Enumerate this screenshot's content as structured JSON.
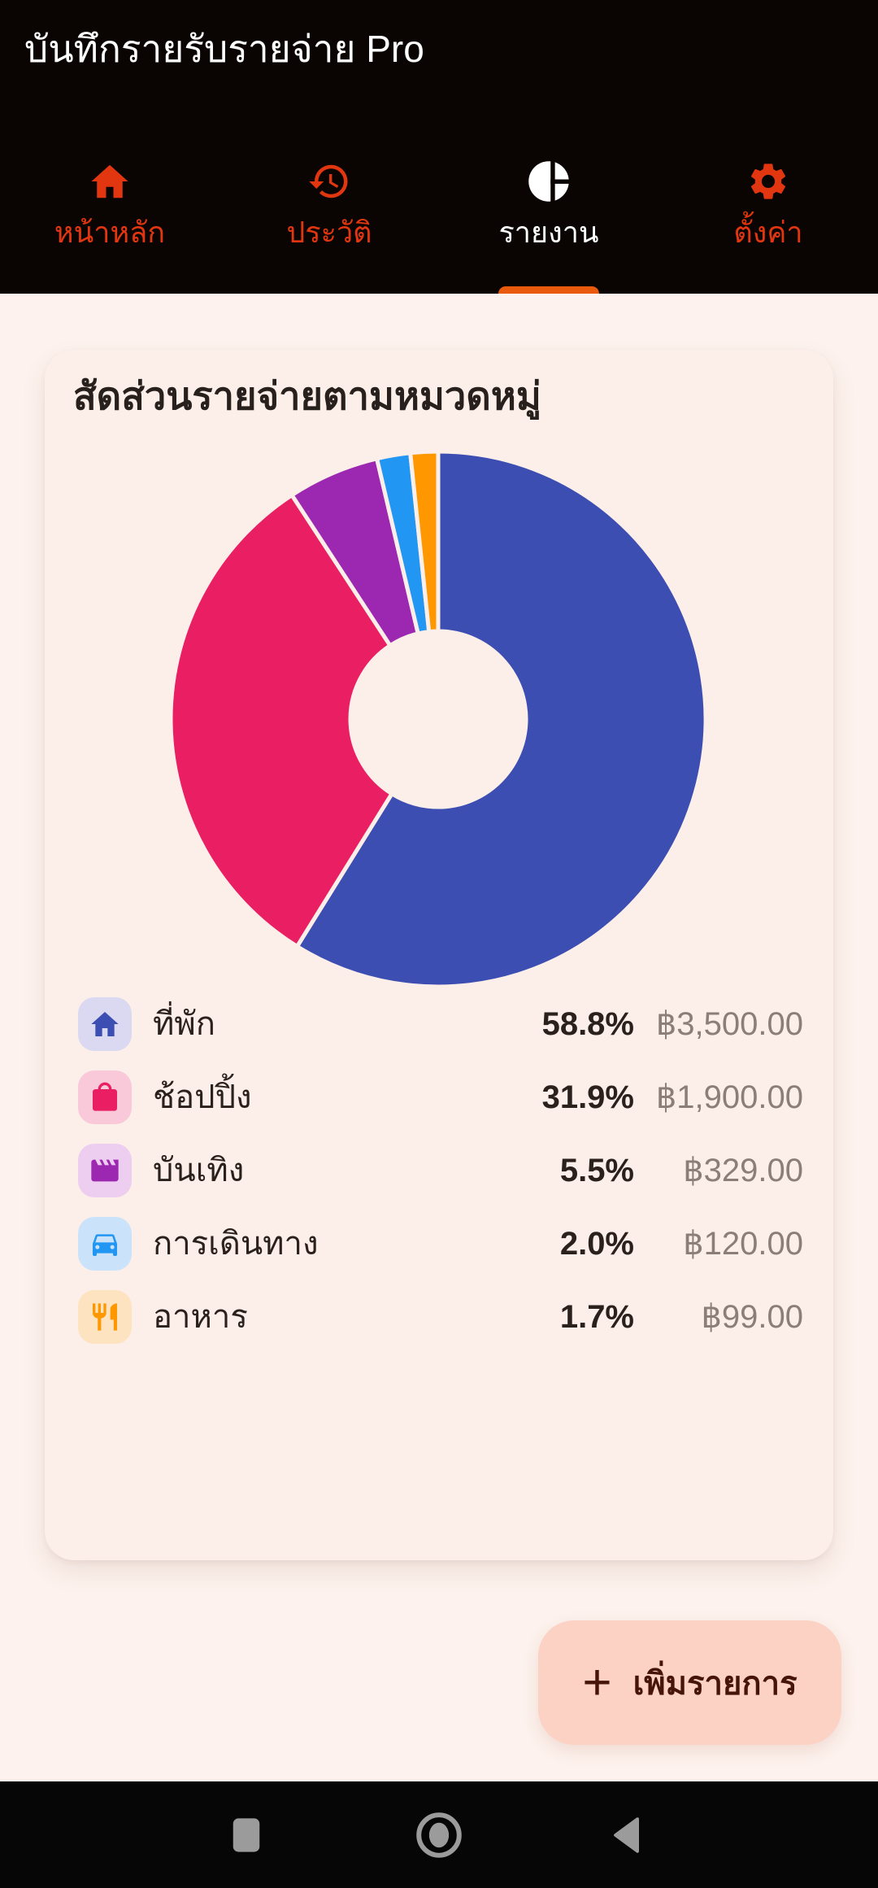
{
  "app": {
    "title": "บันทึกรายรับรายจ่าย Pro"
  },
  "tabs": [
    {
      "label": "หน้าหลัก",
      "icon": "home-icon",
      "active": false
    },
    {
      "label": "ประวัติ",
      "icon": "history-icon",
      "active": false
    },
    {
      "label": "รายงาน",
      "icon": "pie-chart-icon",
      "active": true
    },
    {
      "label": "ตั้งค่า",
      "icon": "settings-icon",
      "active": false
    }
  ],
  "report_card": {
    "title": "สัดส่วนรายจ่ายตามหมวดหมู่"
  },
  "chart_data": {
    "type": "pie",
    "donut": true,
    "title": "สัดส่วนรายจ่ายตามหมวดหมู่",
    "start_angle_deg": 0,
    "direction": "clockwise",
    "categories": [
      "ที่พัก",
      "ช้อปปิ้ง",
      "บันเทิง",
      "การเดินทาง",
      "อาหาร"
    ],
    "values": [
      3500,
      1900,
      329,
      120,
      99
    ],
    "percent_labels": [
      "58.8%",
      "31.9%",
      "5.5%",
      "2.0%",
      "1.7%"
    ],
    "amount_labels": [
      "฿3,500.00",
      "฿1,900.00",
      "฿329.00",
      "฿120.00",
      "฿99.00"
    ],
    "colors": [
      "#3D4EB3",
      "#E91E63",
      "#9C27B0",
      "#2196F3",
      "#FF9800"
    ],
    "chip_colors": [
      "#DBD9F1",
      "#F9C9DA",
      "#EDCDF0",
      "#CBE3FA",
      "#FDE3C0"
    ],
    "legend_icons": [
      "home-icon",
      "shopping-bag-icon",
      "movie-icon",
      "car-icon",
      "restaurant-icon"
    ],
    "legend_position": "below"
  },
  "fab": {
    "plus": "+",
    "label": "เพิ่มรายการ"
  },
  "android_nav": {
    "buttons": [
      "recents",
      "home",
      "back"
    ]
  },
  "colors": {
    "appbar_bg": "#0A0502",
    "tab_inactive": "#E23610",
    "tab_active": "#FFFFFF",
    "tab_indicator": "#EA5A0C",
    "page_bg": "#FDF2ED",
    "card_bg": "#FCEEE8",
    "title_text": "#27201C",
    "amount_text": "#8A7E78",
    "fab_bg": "#FBD2C4",
    "fab_text": "#47140A",
    "navbar_bg": "#060606",
    "nav_icon": "#9B9B9B"
  }
}
